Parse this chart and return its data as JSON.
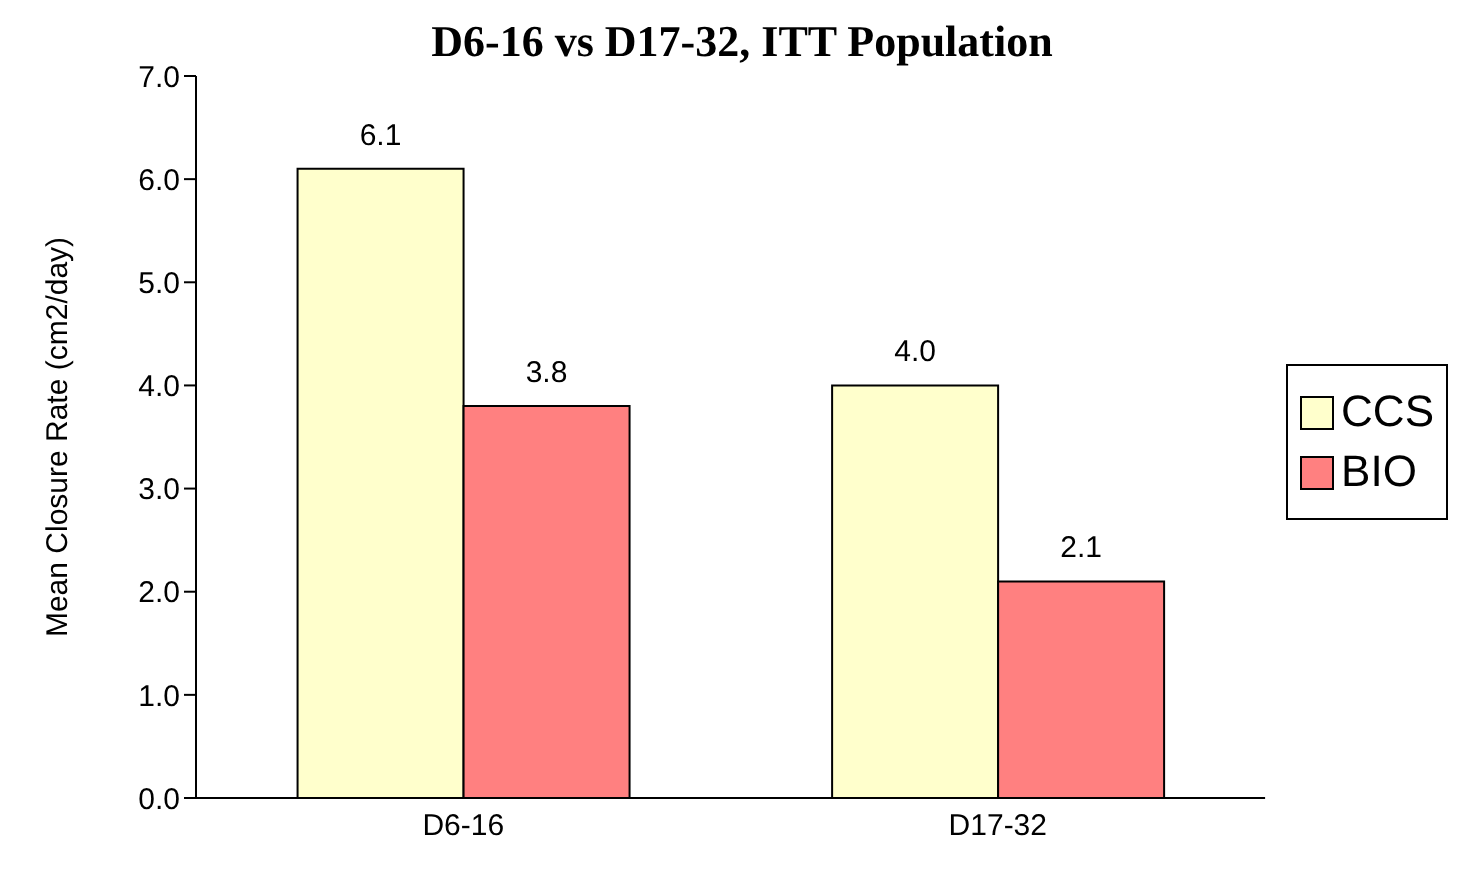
{
  "chart_data": {
    "type": "bar",
    "title": "D6-16 vs D17-32, ITT Population",
    "ylabel": "Mean Closure Rate (cm2/day)",
    "categories": [
      "D6-16",
      "D17-32"
    ],
    "series": [
      {
        "name": "CCS",
        "color": "#ffffcc",
        "values": [
          6.1,
          4.0
        ],
        "value_labels": [
          "6.1",
          "4.0"
        ]
      },
      {
        "name": "BIO",
        "color": "#ff8080",
        "values": [
          3.8,
          2.1
        ],
        "value_labels": [
          "3.8",
          "2.1"
        ]
      }
    ],
    "ylim": [
      0,
      7
    ],
    "yticks": [
      {
        "value": 0,
        "label": "0.0"
      },
      {
        "value": 1,
        "label": "1.0"
      },
      {
        "value": 2,
        "label": "2.0"
      },
      {
        "value": 3,
        "label": "3.0"
      },
      {
        "value": 4,
        "label": "4.0"
      },
      {
        "value": 5,
        "label": "5.0"
      },
      {
        "value": 6,
        "label": "6.0"
      },
      {
        "value": 7,
        "label": "7.0"
      }
    ],
    "legend": "right",
    "grid": false
  }
}
